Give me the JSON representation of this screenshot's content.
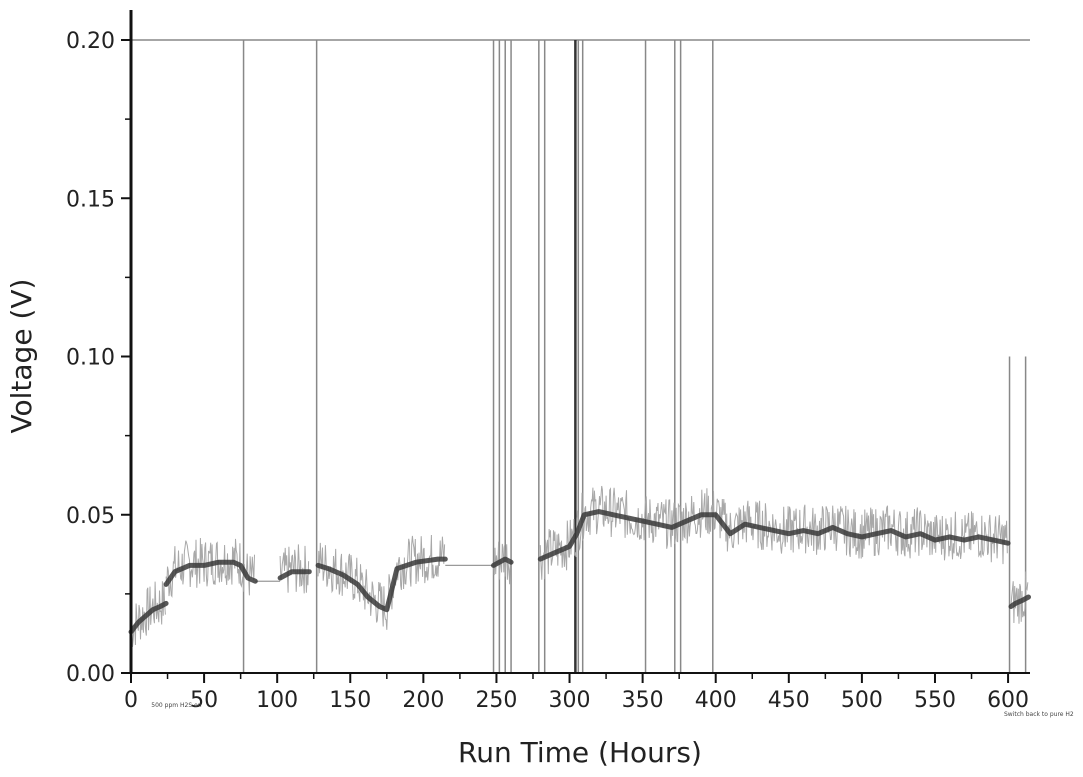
{
  "chart_data": {
    "type": "line",
    "title": "",
    "xlabel": "Run Time (Hours)",
    "ylabel": "Voltage (V)",
    "xlim": [
      0,
      615
    ],
    "ylim": [
      0,
      0.2
    ],
    "grid": false,
    "x_ticks": [
      0,
      50,
      100,
      150,
      200,
      250,
      300,
      350,
      400,
      450,
      500,
      550,
      600
    ],
    "x_tick_labels": [
      "0",
      "50",
      "100",
      "150",
      "200",
      "250",
      "300",
      "350",
      "400",
      "450",
      "500",
      "550",
      "600"
    ],
    "y_ticks": [
      0.0,
      0.05,
      0.1,
      0.15,
      0.2
    ],
    "y_tick_labels": [
      "0.00",
      "0.05",
      "0.10",
      "0.15",
      "0.20"
    ],
    "series": [
      {
        "color": "#3a3a3a",
        "segments": [
          {
            "x": [
              0,
              5,
              10,
              15,
              20,
              24
            ],
            "y": [
              0.013,
              0.016,
              0.018,
              0.02,
              0.021,
              0.022
            ]
          },
          {
            "x": [
              24,
              30,
              40,
              50,
              60,
              70,
              75,
              80,
              85
            ],
            "y": [
              0.028,
              0.032,
              0.034,
              0.034,
              0.035,
              0.035,
              0.034,
              0.03,
              0.029
            ]
          },
          {
            "x": [
              102,
              110,
              118,
              122
            ],
            "y": [
              0.03,
              0.032,
              0.032,
              0.032
            ]
          },
          {
            "x": [
              128,
              135,
              145,
              155,
              162,
              170,
              175,
              182,
              195,
              210,
              215
            ],
            "y": [
              0.034,
              0.033,
              0.031,
              0.028,
              0.024,
              0.021,
              0.02,
              0.033,
              0.035,
              0.036,
              0.036
            ]
          },
          {
            "x": [
              248,
              252,
              256,
              260
            ],
            "y": [
              0.034,
              0.035,
              0.036,
              0.035
            ]
          },
          {
            "x": [
              280,
              290,
              300,
              305,
              310,
              320,
              330,
              340,
              350,
              360,
              370,
              380,
              390,
              400,
              410,
              420,
              430,
              440,
              450,
              460,
              470,
              480,
              490,
              500,
              510,
              520,
              530,
              540,
              550,
              560,
              570,
              580,
              590,
              600
            ],
            "y": [
              0.036,
              0.038,
              0.04,
              0.044,
              0.05,
              0.051,
              0.05,
              0.049,
              0.048,
              0.047,
              0.046,
              0.048,
              0.05,
              0.05,
              0.044,
              0.047,
              0.046,
              0.045,
              0.044,
              0.045,
              0.044,
              0.046,
              0.044,
              0.043,
              0.044,
              0.045,
              0.043,
              0.044,
              0.042,
              0.043,
              0.042,
              0.043,
              0.042,
              0.041
            ]
          },
          {
            "x": [
              602,
              605,
              610,
              614
            ],
            "y": [
              0.021,
              0.022,
              0.023,
              0.024
            ]
          }
        ]
      }
    ],
    "reference_line": {
      "y": 0.2,
      "x_range": [
        0,
        615
      ],
      "color": "#888888"
    },
    "gap_connectors": [
      {
        "x_range": [
          85,
          102
        ],
        "y": 0.029
      },
      {
        "x_range": [
          215,
          250
        ],
        "y": 0.034
      }
    ],
    "event_lines": [
      {
        "x": 77,
        "y_top": 0.2,
        "color": "#888888"
      },
      {
        "x": 127,
        "y_top": 0.2,
        "color": "#888888"
      },
      {
        "x": 248,
        "y_top": 0.2,
        "color": "#888888"
      },
      {
        "x": 252,
        "y_top": 0.2,
        "color": "#888888"
      },
      {
        "x": 256,
        "y_top": 0.2,
        "color": "#888888"
      },
      {
        "x": 260,
        "y_top": 0.2,
        "color": "#888888"
      },
      {
        "x": 279,
        "y_top": 0.2,
        "color": "#888888"
      },
      {
        "x": 283,
        "y_top": 0.2,
        "color": "#888888"
      },
      {
        "x": 304,
        "y_top": 0.2,
        "color": "#333333"
      },
      {
        "x": 306,
        "y_top": 0.2,
        "color": "#888888"
      },
      {
        "x": 309,
        "y_top": 0.2,
        "color": "#888888"
      },
      {
        "x": 352,
        "y_top": 0.2,
        "color": "#888888"
      },
      {
        "x": 372,
        "y_top": 0.2,
        "color": "#888888"
      },
      {
        "x": 376,
        "y_top": 0.2,
        "color": "#888888"
      },
      {
        "x": 398,
        "y_top": 0.2,
        "color": "#888888"
      },
      {
        "x": 601,
        "y_top": 0.1,
        "color": "#888888"
      },
      {
        "x": 612,
        "y_top": 0.1,
        "color": "#888888"
      }
    ],
    "annotations": [
      {
        "text": "500 ppm H2S on",
        "x": 18
      },
      {
        "text": "Switch back to pure H2",
        "x": 600
      }
    ]
  }
}
